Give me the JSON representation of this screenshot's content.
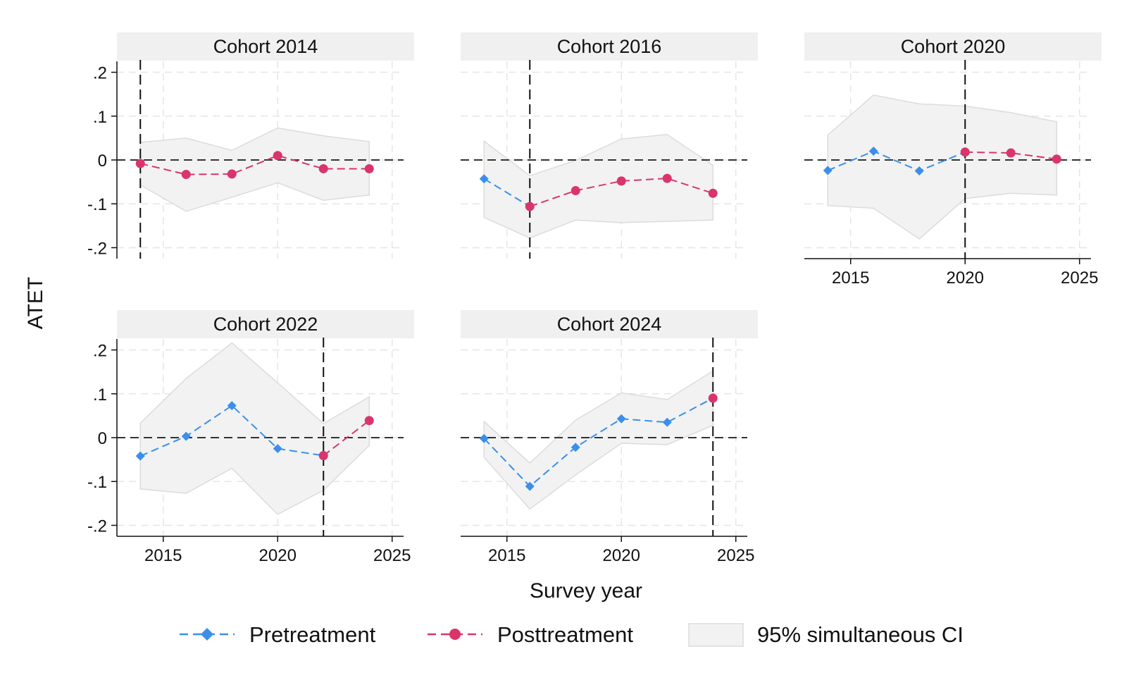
{
  "figure": {
    "ylabel": "ATET",
    "xlabel": "Survey year",
    "legend": {
      "placement": "bottom",
      "items": [
        {
          "label": "Pretreatment",
          "color": "#3b8fea",
          "marker": "diamond"
        },
        {
          "label": "Posttreatment",
          "color": "#d9356b",
          "marker": "circle"
        },
        {
          "label": "95% simultaneous CI",
          "color": "#f2f2f2",
          "marker": "area"
        }
      ]
    }
  },
  "chart_data": [
    {
      "type": "line",
      "title": "Cohort 2014",
      "treatment_year": 2014,
      "x": [
        2014,
        2016,
        2018,
        2020,
        2022,
        2024
      ],
      "pre": [],
      "post": [
        [
          2014,
          -0.008
        ],
        [
          2016,
          -0.033
        ],
        [
          2018,
          -0.032
        ],
        [
          2020,
          0.01
        ],
        [
          2022,
          -0.02
        ],
        [
          2024,
          -0.02
        ]
      ],
      "ci_lower": [
        -0.057,
        -0.117,
        -0.085,
        -0.052,
        -0.092,
        -0.08
      ],
      "ci_upper": [
        0.04,
        0.05,
        0.022,
        0.073,
        0.055,
        0.042
      ],
      "xlim": [
        2013.5,
        2025.5
      ],
      "ylim": [
        -0.225,
        0.225
      ],
      "xticks": [
        2015,
        2020,
        2025
      ],
      "yticks": [
        -0.2,
        -0.1,
        0,
        0.1,
        0.2
      ],
      "ytick_labels": [
        "-.2",
        "-.1",
        "0",
        ".1",
        ".2"
      ],
      "show_xtick_labels": false,
      "show_ytick_labels": true,
      "grid": true
    },
    {
      "type": "line",
      "title": "Cohort 2016",
      "treatment_year": 2016,
      "x": [
        2014,
        2016,
        2018,
        2020,
        2022,
        2024
      ],
      "pre": [
        [
          2014,
          -0.043
        ],
        [
          2016,
          -0.106
        ]
      ],
      "post": [
        [
          2016,
          -0.106
        ],
        [
          2018,
          -0.07
        ],
        [
          2020,
          -0.048
        ],
        [
          2022,
          -0.042
        ],
        [
          2024,
          -0.076
        ]
      ],
      "ci_lower": [
        -0.131,
        -0.178,
        -0.137,
        -0.143,
        -0.14,
        -0.137
      ],
      "ci_upper": [
        0.043,
        -0.036,
        -0.001,
        0.048,
        0.058,
        -0.012
      ],
      "xlim": [
        2013.5,
        2025.5
      ],
      "ylim": [
        -0.225,
        0.225
      ],
      "xticks": [
        2015,
        2020,
        2025
      ],
      "yticks": [
        -0.2,
        -0.1,
        0,
        0.1,
        0.2
      ],
      "ytick_labels": [
        "-.2",
        "-.1",
        "0",
        ".1",
        ".2"
      ],
      "show_xtick_labels": false,
      "show_ytick_labels": false,
      "grid": true
    },
    {
      "type": "line",
      "title": "Cohort 2020",
      "treatment_year": 2020,
      "x": [
        2014,
        2016,
        2018,
        2020,
        2022,
        2024
      ],
      "pre": [
        [
          2014,
          -0.024
        ],
        [
          2016,
          0.02
        ],
        [
          2018,
          -0.025
        ],
        [
          2020,
          0.018
        ]
      ],
      "post": [
        [
          2020,
          0.018
        ],
        [
          2022,
          0.016
        ],
        [
          2024,
          0.002
        ]
      ],
      "ci_lower": [
        -0.104,
        -0.11,
        -0.18,
        -0.088,
        -0.076,
        -0.08
      ],
      "ci_upper": [
        0.057,
        0.148,
        0.128,
        0.123,
        0.108,
        0.087
      ],
      "xlim": [
        2013.5,
        2025.5
      ],
      "ylim": [
        -0.225,
        0.225
      ],
      "xticks": [
        2015,
        2020,
        2025
      ],
      "yticks": [
        -0.2,
        -0.1,
        0,
        0.1,
        0.2
      ],
      "ytick_labels": [
        "-.2",
        "-.1",
        "0",
        ".1",
        ".2"
      ],
      "show_xtick_labels": true,
      "show_ytick_labels": false,
      "grid": true
    },
    {
      "type": "line",
      "title": "Cohort 2022",
      "treatment_year": 2022,
      "x": [
        2014,
        2016,
        2018,
        2020,
        2022,
        2024
      ],
      "pre": [
        [
          2014,
          -0.042
        ],
        [
          2016,
          0.003
        ],
        [
          2018,
          0.073
        ],
        [
          2020,
          -0.025
        ],
        [
          2022,
          -0.041
        ]
      ],
      "post": [
        [
          2022,
          -0.041
        ],
        [
          2024,
          0.039
        ]
      ],
      "ci_lower": [
        -0.117,
        -0.127,
        -0.07,
        -0.175,
        -0.12,
        -0.018
      ],
      "ci_upper": [
        0.033,
        0.135,
        0.216,
        0.125,
        0.032,
        0.093
      ],
      "xlim": [
        2013.5,
        2025.5
      ],
      "ylim": [
        -0.225,
        0.225
      ],
      "xticks": [
        2015,
        2020,
        2025
      ],
      "yticks": [
        -0.2,
        -0.1,
        0,
        0.1,
        0.2
      ],
      "ytick_labels": [
        "-.2",
        "-.1",
        "0",
        ".1",
        ".2"
      ],
      "show_xtick_labels": true,
      "show_ytick_labels": true,
      "grid": true
    },
    {
      "type": "line",
      "title": "Cohort 2024",
      "treatment_year": 2024,
      "x": [
        2014,
        2016,
        2018,
        2020,
        2022,
        2024
      ],
      "pre": [
        [
          2014,
          -0.002
        ],
        [
          2016,
          -0.111
        ],
        [
          2018,
          -0.022
        ],
        [
          2020,
          0.043
        ],
        [
          2022,
          0.035
        ],
        [
          2024,
          0.09
        ]
      ],
      "post": [
        [
          2024,
          0.09
        ]
      ],
      "ci_lower": [
        -0.045,
        -0.163,
        -0.085,
        -0.013,
        -0.016,
        0.028
      ],
      "ci_upper": [
        0.037,
        -0.058,
        0.04,
        0.102,
        0.087,
        0.152
      ],
      "xlim": [
        2013.5,
        2025.5
      ],
      "ylim": [
        -0.225,
        0.225
      ],
      "xticks": [
        2015,
        2020,
        2025
      ],
      "yticks": [
        -0.2,
        -0.1,
        0,
        0.1,
        0.2
      ],
      "ytick_labels": [
        "-.2",
        "-.1",
        "0",
        ".1",
        ".2"
      ],
      "show_xtick_labels": true,
      "show_ytick_labels": false,
      "grid": true
    }
  ]
}
